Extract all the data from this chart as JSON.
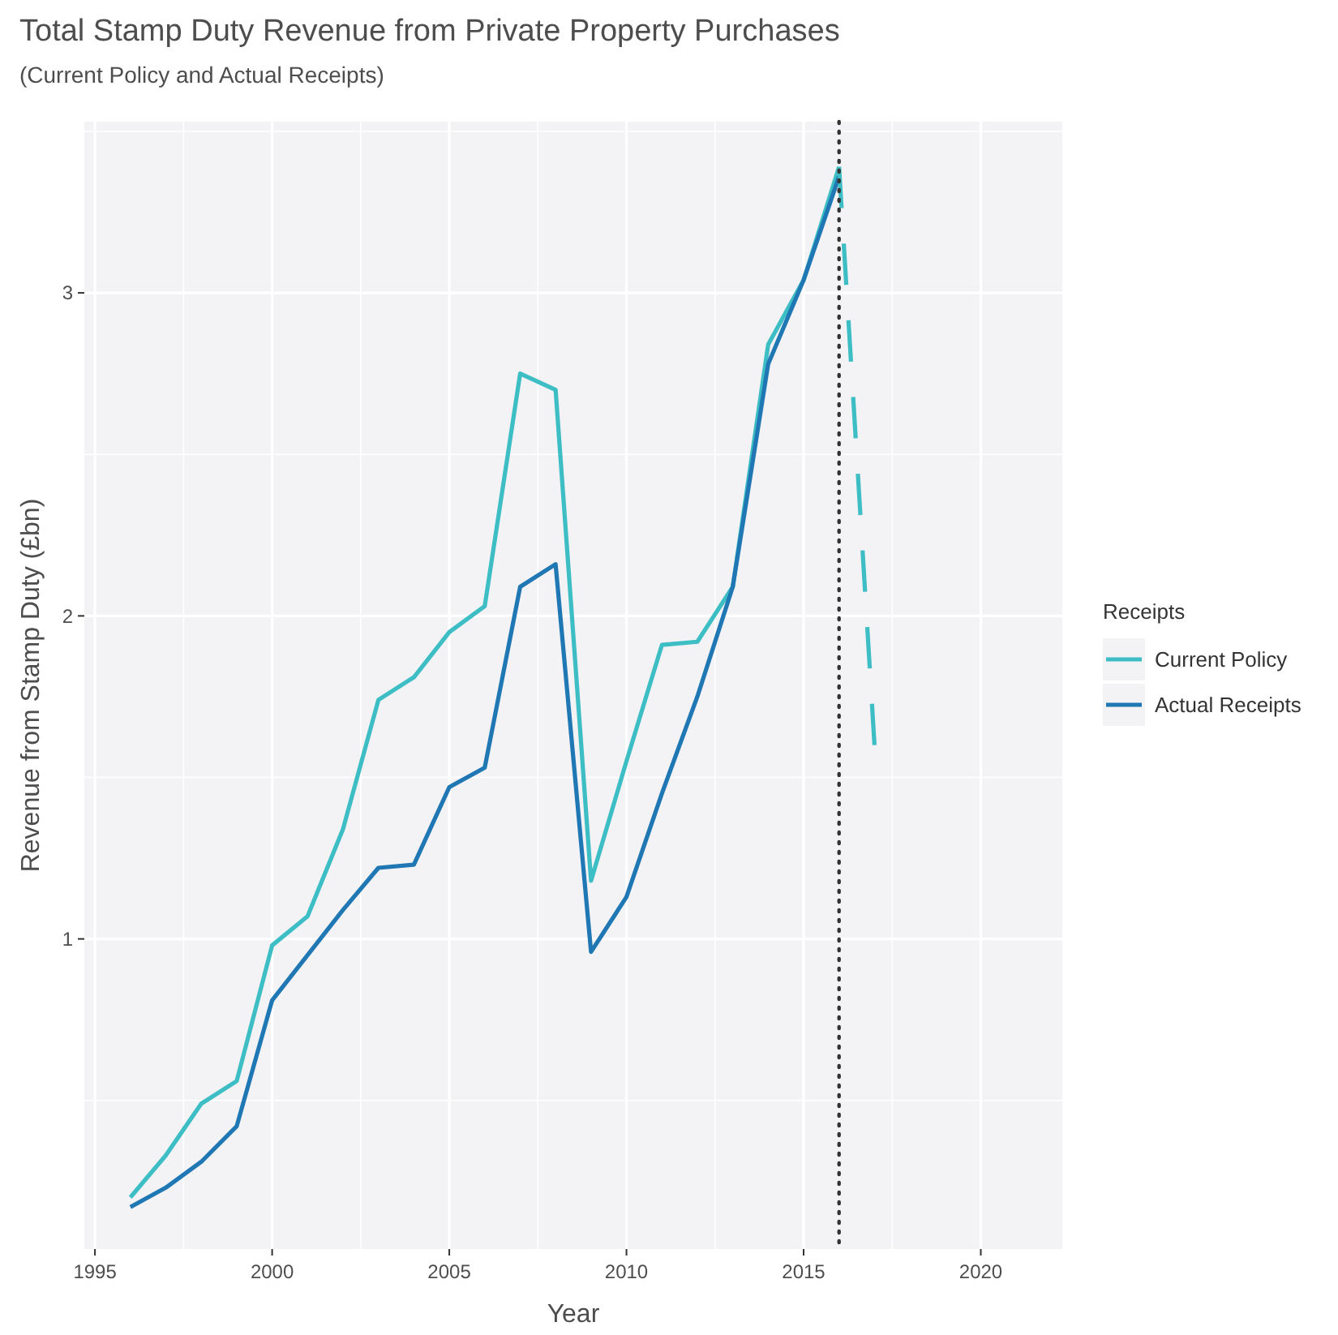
{
  "chart_data": {
    "type": "line",
    "title": "Total Stamp Duty Revenue from Private Property Purchases",
    "subtitle": "(Current Policy and Actual Receipts)",
    "xlabel": "Year",
    "ylabel": "Revenue from Stamp Duty (£bn)",
    "legend_title": "Receipts",
    "legend": "right",
    "grid": true,
    "line_style": "solid",
    "xlim": [
      1994.7,
      2022.3
    ],
    "xticks": [
      1995,
      2000,
      2005,
      2010,
      2015,
      2020
    ],
    "ylim": [
      0.04,
      3.53
    ],
    "yticks": [
      1,
      2,
      3
    ],
    "series": [
      {
        "name": "Current Policy",
        "color": "#3dbdc4",
        "x": [
          1996,
          1997,
          1998,
          1999,
          2000,
          2001,
          2002,
          2003,
          2004,
          2005,
          2006,
          2007,
          2008,
          2009,
          2010,
          2011,
          2012,
          2013,
          2014,
          2015,
          2016
        ],
        "values": [
          0.2,
          0.33,
          0.49,
          0.56,
          0.98,
          1.07,
          1.34,
          1.74,
          1.81,
          1.95,
          2.03,
          2.75,
          2.7,
          1.18,
          1.55,
          1.91,
          1.92,
          2.09,
          2.84,
          3.04,
          3.39
        ]
      },
      {
        "name": "Actual Receipts",
        "color": "#1f77b4",
        "x": [
          1996,
          1997,
          1998,
          1999,
          2000,
          2001,
          2002,
          2003,
          2004,
          2005,
          2006,
          2007,
          2008,
          2009,
          2010,
          2011,
          2012,
          2013,
          2014,
          2015,
          2016
        ],
        "values": [
          0.17,
          0.23,
          0.31,
          0.42,
          0.81,
          0.95,
          1.09,
          1.22,
          1.23,
          1.47,
          1.53,
          2.09,
          2.16,
          0.96,
          1.13,
          1.45,
          1.75,
          2.09,
          2.78,
          3.04,
          3.36
        ]
      },
      {
        "color": "#3dbdc4",
        "line_style": "dashed",
        "x": [
          2016,
          2017
        ],
        "values": [
          3.39,
          1.6
        ]
      }
    ],
    "ref_lines": [
      {
        "axis": "x",
        "value": 2016,
        "line_style": "dotted",
        "color": "#333333"
      }
    ]
  }
}
